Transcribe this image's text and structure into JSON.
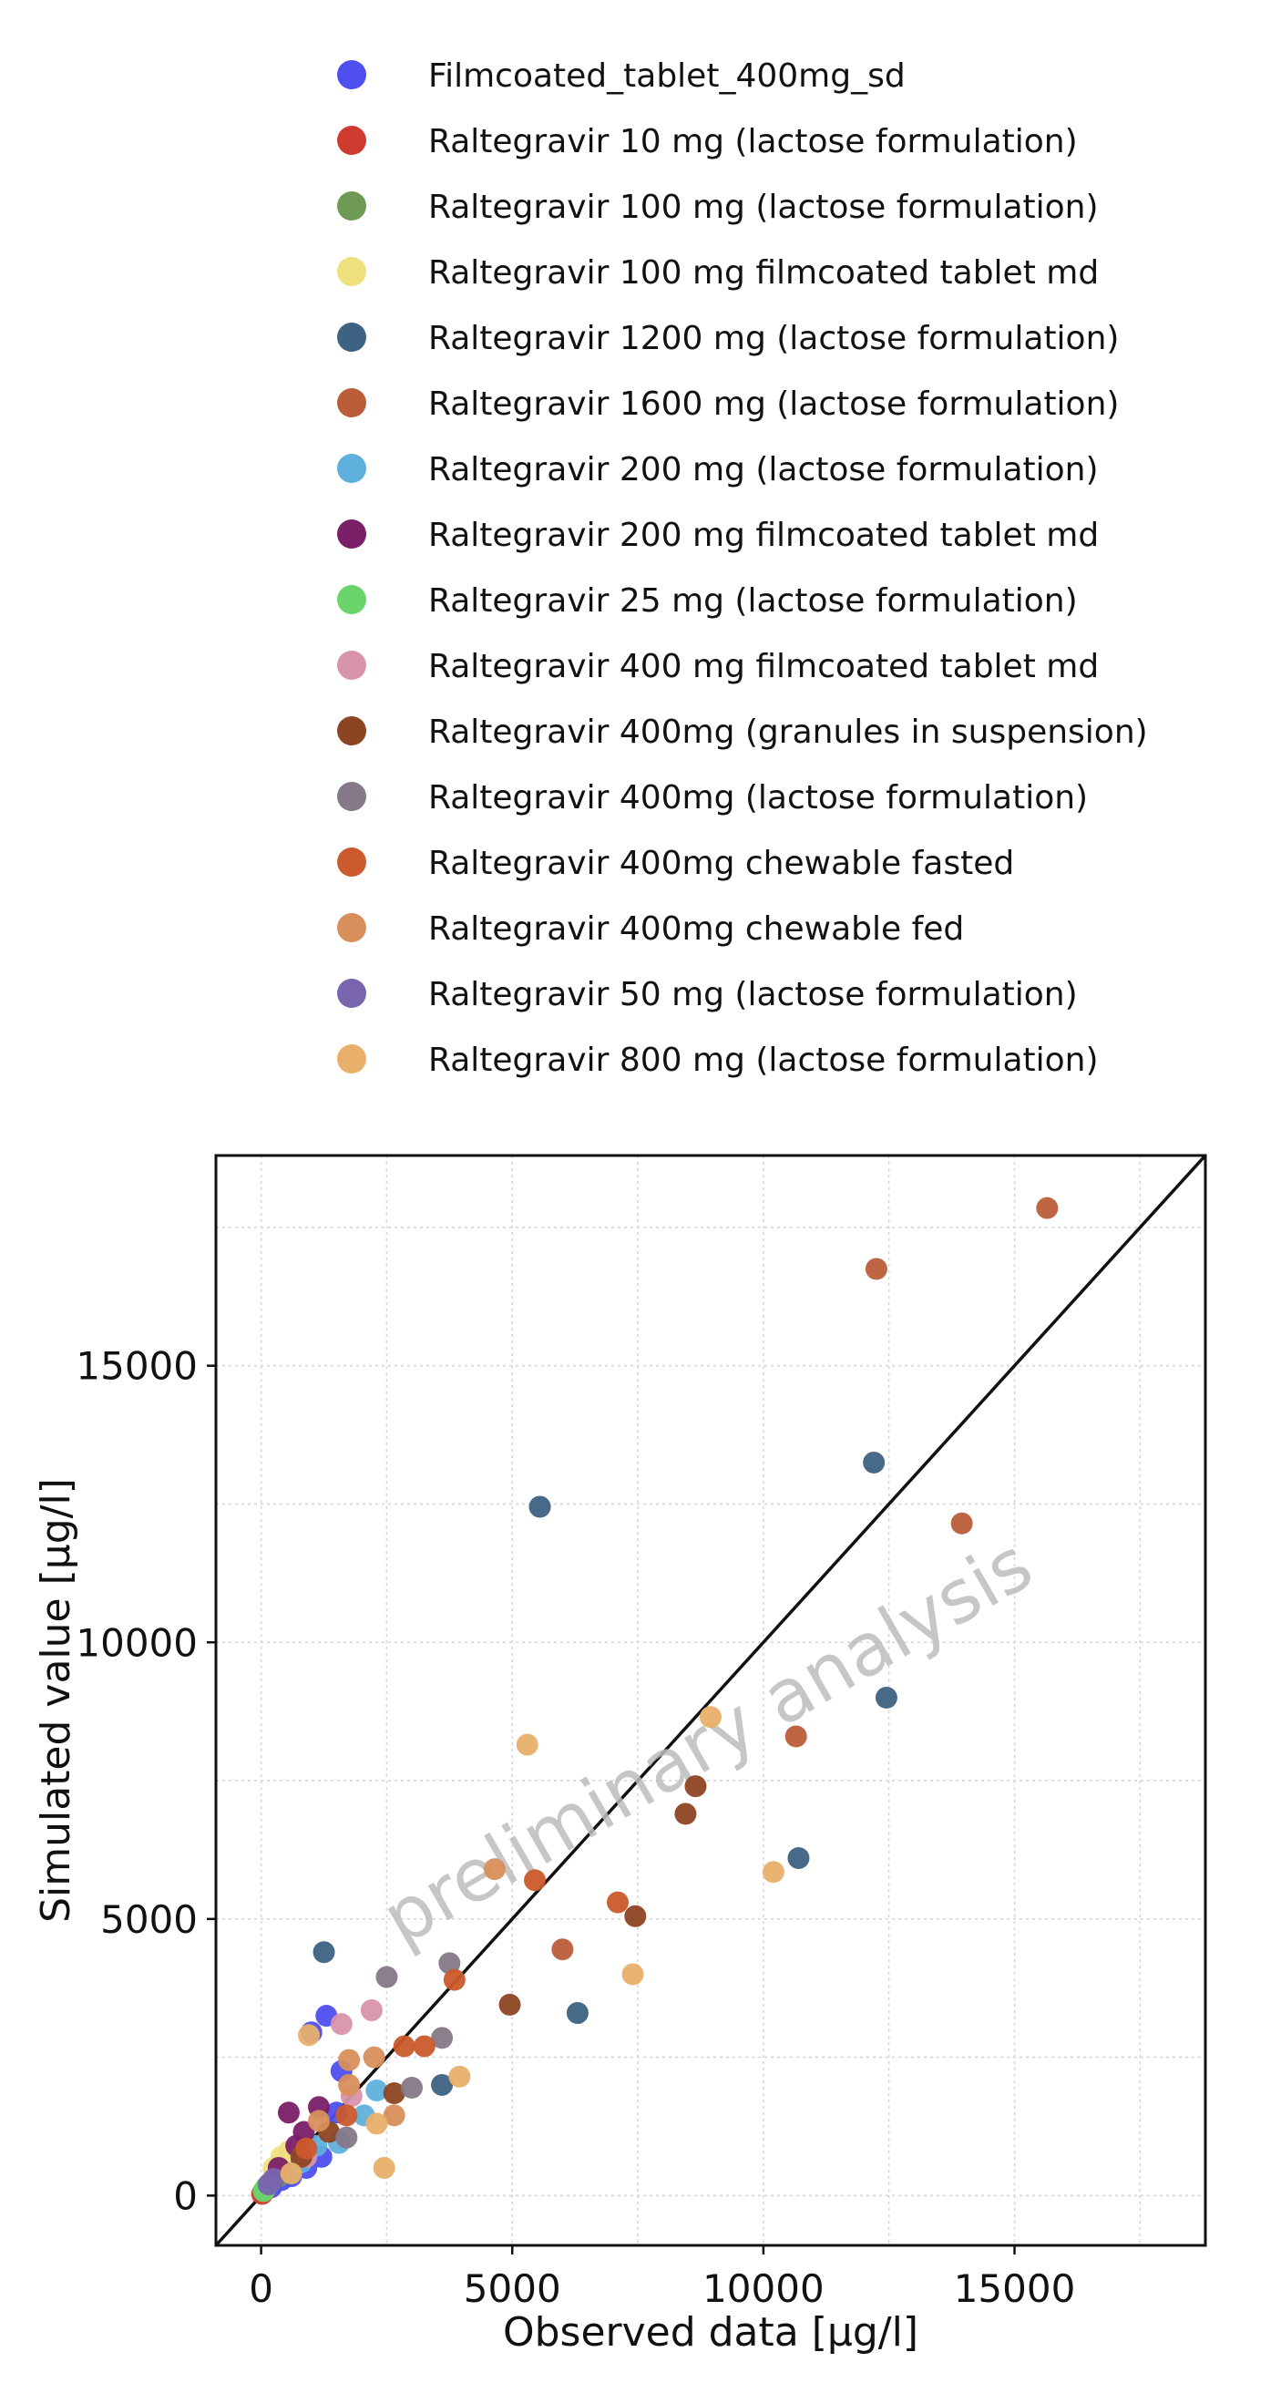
{
  "chart_data": {
    "type": "scatter",
    "xlabel": "Observed data [µg/l]",
    "ylabel": "Simulated value [µg/l]",
    "xlim": [
      -900,
      18800
    ],
    "ylim": [
      -900,
      18800
    ],
    "xticks": [
      0,
      5000,
      10000,
      15000
    ],
    "yticks": [
      0,
      5000,
      10000,
      15000
    ],
    "grid": true,
    "identity_line": true,
    "legend_position": "top",
    "watermark": "preliminary analysis",
    "series": [
      {
        "name": "Filmcoated_tablet_400mg_sd",
        "color": "#4f4ff0",
        "points": [
          [
            1000,
            2950
          ],
          [
            1300,
            3250
          ],
          [
            1600,
            2250
          ],
          [
            1500,
            1500
          ],
          [
            1200,
            700
          ],
          [
            900,
            500
          ],
          [
            600,
            350
          ],
          [
            400,
            280
          ],
          [
            200,
            150
          ]
        ]
      },
      {
        "name": "Raltegravir 10 mg (lactose formulation)",
        "color": "#d03b30",
        "points": [
          [
            20,
            30
          ],
          [
            40,
            60
          ],
          [
            60,
            80
          ]
        ]
      },
      {
        "name": "Raltegravir 100 mg (lactose formulation)",
        "color": "#6f9a56",
        "points": [
          [
            100,
            150
          ],
          [
            200,
            250
          ],
          [
            350,
            350
          ]
        ]
      },
      {
        "name": "Raltegravir 100 mg filmcoated tablet md",
        "color": "#efe07e",
        "points": [
          [
            400,
            700
          ],
          [
            550,
            800
          ],
          [
            250,
            500
          ]
        ]
      },
      {
        "name": "Raltegravir 1200 mg (lactose formulation)",
        "color": "#3d6282",
        "points": [
          [
            1250,
            4400
          ],
          [
            5550,
            12450
          ],
          [
            12200,
            13250
          ],
          [
            12450,
            9000
          ],
          [
            10700,
            6100
          ],
          [
            6300,
            3300
          ],
          [
            3600,
            2000
          ]
        ]
      },
      {
        "name": "Raltegravir 1600 mg (lactose formulation)",
        "color": "#bb5d39",
        "points": [
          [
            15650,
            17850
          ],
          [
            12250,
            16750
          ],
          [
            13950,
            12150
          ],
          [
            10650,
            8300
          ],
          [
            6000,
            4450
          ]
        ]
      },
      {
        "name": "Raltegravir 200 mg (lactose formulation)",
        "color": "#5fb0dd",
        "points": [
          [
            2300,
            1900
          ],
          [
            1550,
            950
          ],
          [
            2050,
            1450
          ],
          [
            800,
            600
          ],
          [
            1100,
            900
          ]
        ]
      },
      {
        "name": "Raltegravir 200 mg filmcoated tablet md",
        "color": "#7b1f69",
        "points": [
          [
            550,
            1500
          ],
          [
            1150,
            1600
          ],
          [
            850,
            1150
          ],
          [
            700,
            900
          ],
          [
            350,
            500
          ]
        ]
      },
      {
        "name": "Raltegravir 25 mg (lactose formulation)",
        "color": "#6bd46b",
        "points": [
          [
            50,
            80
          ],
          [
            80,
            120
          ]
        ]
      },
      {
        "name": "Raltegravir 400 mg filmcoated tablet md",
        "color": "#d894aa",
        "points": [
          [
            2200,
            3350
          ],
          [
            1600,
            3100
          ],
          [
            1800,
            1800
          ],
          [
            900,
            700
          ]
        ]
      },
      {
        "name": "Raltegravir 400mg (granules in suspension)",
        "color": "#8c4522",
        "points": [
          [
            8650,
            7400
          ],
          [
            8450,
            6900
          ],
          [
            7450,
            5050
          ],
          [
            4950,
            3450
          ],
          [
            2650,
            1850
          ],
          [
            1350,
            1150
          ],
          [
            800,
            700
          ]
        ]
      },
      {
        "name": "Raltegravir 400mg (lactose formulation)",
        "color": "#857888",
        "points": [
          [
            3750,
            4200
          ],
          [
            2500,
            3950
          ],
          [
            3600,
            2850
          ],
          [
            3000,
            1950
          ],
          [
            1700,
            1050
          ]
        ]
      },
      {
        "name": "Raltegravir 400mg chewable fasted",
        "color": "#cb5a2c",
        "points": [
          [
            5450,
            5700
          ],
          [
            7100,
            5300
          ],
          [
            3850,
            3900
          ],
          [
            2850,
            2700
          ],
          [
            3250,
            2700
          ],
          [
            1700,
            1450
          ],
          [
            900,
            850
          ]
        ]
      },
      {
        "name": "Raltegravir 400mg chewable fed",
        "color": "#d98f5b",
        "points": [
          [
            4650,
            5900
          ],
          [
            2250,
            2500
          ],
          [
            1750,
            2450
          ],
          [
            1750,
            2000
          ],
          [
            2650,
            1450
          ],
          [
            1150,
            1350
          ]
        ]
      },
      {
        "name": "Raltegravir 50 mg (lactose formulation)",
        "color": "#7964ae",
        "points": [
          [
            150,
            200
          ],
          [
            250,
            300
          ]
        ]
      },
      {
        "name": "Raltegravir 800 mg (lactose formulation)",
        "color": "#e8b06a",
        "points": [
          [
            5300,
            8150
          ],
          [
            8950,
            8650
          ],
          [
            10200,
            5850
          ],
          [
            7400,
            4000
          ],
          [
            3950,
            2150
          ],
          [
            950,
            2900
          ],
          [
            2300,
            1300
          ],
          [
            2450,
            500
          ],
          [
            600,
            400
          ]
        ]
      }
    ]
  }
}
